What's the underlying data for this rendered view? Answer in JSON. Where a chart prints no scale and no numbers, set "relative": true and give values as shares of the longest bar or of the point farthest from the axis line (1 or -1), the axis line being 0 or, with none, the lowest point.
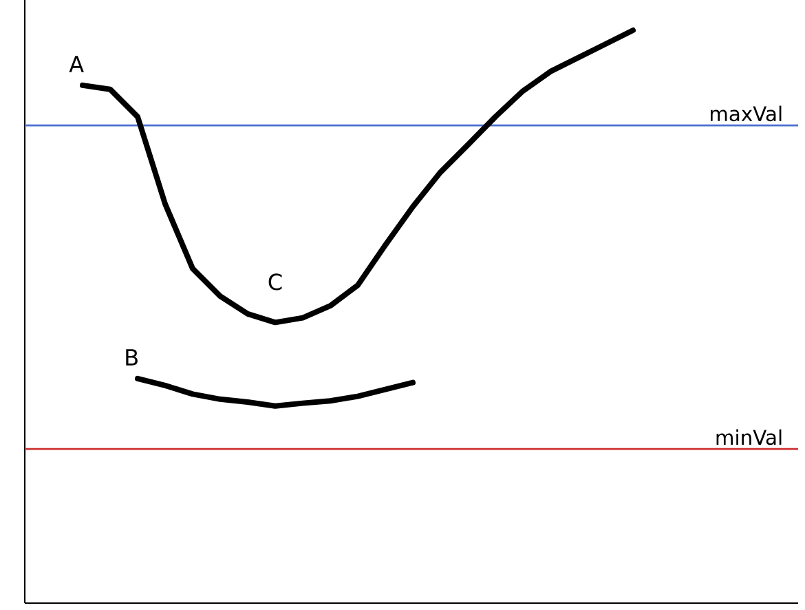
{
  "chart_data": {
    "type": "line",
    "relative": true,
    "categories": [
      null,
      null,
      null,
      null,
      null,
      null,
      null,
      null,
      null,
      null,
      null,
      null,
      null,
      null,
      null,
      null,
      null,
      null,
      null,
      null,
      null,
      null,
      null,
      null,
      null,
      null,
      null,
      null
    ],
    "series": [
      {
        "name": "A",
        "color": "#000000",
        "values": [
          null,
          null,
          0.904,
          0.897,
          0.849,
          0.697,
          0.584,
          0.536,
          0.505,
          0.49,
          0.498,
          0.519,
          0.555,
          0.625,
          0.692,
          0.752,
          0.8,
          0.849,
          0.894,
          0.928,
          0.952,
          0.976,
          1,
          null,
          null,
          null,
          null,
          null
        ]
      },
      {
        "name": "B",
        "color": "#000000",
        "values": [
          null,
          null,
          null,
          null,
          0.392,
          0.38,
          0.365,
          0.356,
          0.351,
          0.344,
          0.349,
          0.353,
          0.361,
          0.373,
          0.385,
          null,
          null,
          null,
          null,
          null,
          null,
          null,
          null,
          null,
          null,
          null,
          null,
          null
        ]
      }
    ],
    "ref_lines": [
      {
        "axis": "y",
        "value": 0.834,
        "label": "maxVal",
        "color": "#4a6fd0"
      },
      {
        "axis": "y",
        "value": 0.269,
        "label": "minVal",
        "color": "#d03030"
      }
    ],
    "annotations": [
      "C"
    ]
  }
}
